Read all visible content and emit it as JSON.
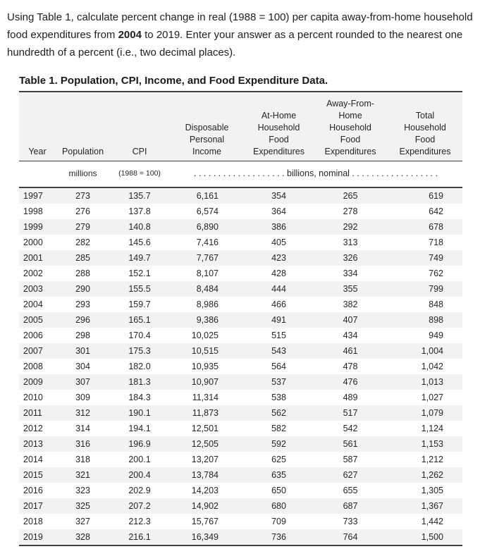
{
  "question": {
    "line1": "Using Table 1, calculate percent change in real (1988 = 100) per capita away-from-home household",
    "line2_pre": "food expenditures from ",
    "line2_bold": "2004",
    "line2_post": " to 2019. Enter your answer as a percent rounded to the nearest one",
    "line3": "hundredth of a percent (i.e., two decimal places)."
  },
  "table": {
    "title": "Table 1. Population, CPI, Income, and Food Expenditure Data.",
    "headers": [
      "Year",
      "Population",
      "CPI",
      "Disposable\nPersonal\nIncome",
      "At-Home\nHousehold\nFood\nExpenditures",
      "Away-From-\nHome\nHousehold\nFood\nExpenditures",
      "Total\nHousehold\nFood\nExpenditures"
    ],
    "units": {
      "population": "millions",
      "cpi": "(1988 = 100)",
      "billions": ". . . . . . . . . . . . . . . . . . . billions, nominal . . . . . . . . . . . . . . . . . ."
    },
    "rows": [
      [
        "1997",
        "273",
        "135.7",
        "6,161",
        "354",
        "265",
        "619"
      ],
      [
        "1998",
        "276",
        "137.8",
        "6,574",
        "364",
        "278",
        "642"
      ],
      [
        "1999",
        "279",
        "140.8",
        "6,890",
        "386",
        "292",
        "678"
      ],
      [
        "2000",
        "282",
        "145.6",
        "7,416",
        "405",
        "313",
        "718"
      ],
      [
        "2001",
        "285",
        "149.7",
        "7,767",
        "423",
        "326",
        "749"
      ],
      [
        "2002",
        "288",
        "152.1",
        "8,107",
        "428",
        "334",
        "762"
      ],
      [
        "2003",
        "290",
        "155.5",
        "8,484",
        "444",
        "355",
        "799"
      ],
      [
        "2004",
        "293",
        "159.7",
        "8,986",
        "466",
        "382",
        "848"
      ],
      [
        "2005",
        "296",
        "165.1",
        "9,386",
        "491",
        "407",
        "898"
      ],
      [
        "2006",
        "298",
        "170.4",
        "10,025",
        "515",
        "434",
        "949"
      ],
      [
        "2007",
        "301",
        "175.3",
        "10,515",
        "543",
        "461",
        "1,004"
      ],
      [
        "2008",
        "304",
        "182.0",
        "10,935",
        "564",
        "478",
        "1,042"
      ],
      [
        "2009",
        "307",
        "181.3",
        "10,907",
        "537",
        "476",
        "1,013"
      ],
      [
        "2010",
        "309",
        "184.3",
        "11,314",
        "538",
        "489",
        "1,027"
      ],
      [
        "2011",
        "312",
        "190.1",
        "11,873",
        "562",
        "517",
        "1,079"
      ],
      [
        "2012",
        "314",
        "194.1",
        "12,501",
        "582",
        "542",
        "1,124"
      ],
      [
        "2013",
        "316",
        "196.9",
        "12,505",
        "592",
        "561",
        "1,153"
      ],
      [
        "2014",
        "318",
        "200.1",
        "13,207",
        "625",
        "587",
        "1,212"
      ],
      [
        "2015",
        "321",
        "200.4",
        "13,784",
        "635",
        "627",
        "1,262"
      ],
      [
        "2016",
        "323",
        "202.9",
        "14,203",
        "650",
        "655",
        "1,305"
      ],
      [
        "2017",
        "325",
        "207.2",
        "14,902",
        "680",
        "687",
        "1,367"
      ],
      [
        "2018",
        "327",
        "212.3",
        "15,767",
        "709",
        "733",
        "1,442"
      ],
      [
        "2019",
        "328",
        "216.1",
        "16,349",
        "736",
        "764",
        "1,500"
      ]
    ],
    "colors": {
      "row_shade": "#f2f2f2",
      "rule": "#3f3f3f",
      "text": "#262626"
    }
  }
}
